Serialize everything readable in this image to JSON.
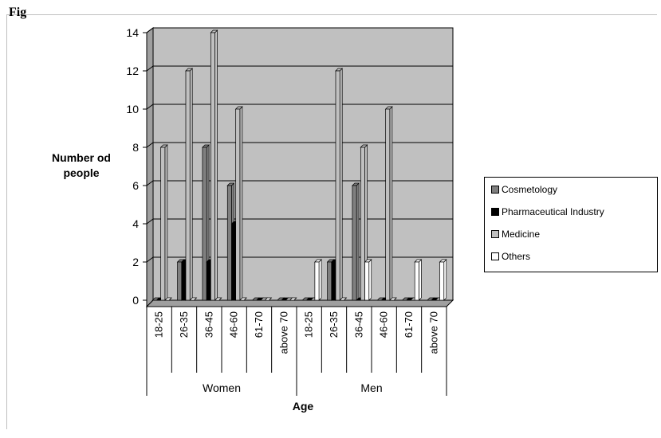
{
  "page": {
    "cut_off_title": "Fig"
  },
  "chart_data": {
    "type": "bar",
    "title": "",
    "xlabel": "Age",
    "ylabel": "Number od people",
    "ylim": [
      0,
      14
    ],
    "yticks": [
      0,
      2,
      4,
      6,
      8,
      10,
      12,
      14
    ],
    "grid": true,
    "groups": [
      {
        "name": "Women",
        "categories": [
          "18-25",
          "26-35",
          "36-45",
          "46-60",
          "61-70",
          "above 70"
        ]
      },
      {
        "name": "Men",
        "categories": [
          "18-25",
          "26-35",
          "36-45",
          "46-60",
          "61-70",
          "above 70"
        ]
      }
    ],
    "categories": [
      "18-25",
      "26-35",
      "36-45",
      "46-60",
      "61-70",
      "above 70",
      "18-25",
      "26-35",
      "36-45",
      "46-60",
      "61-70",
      "above 70"
    ],
    "series": [
      {
        "name": "Cosmetology",
        "color": "#7f7f7f",
        "values": [
          0,
          2,
          8,
          6,
          0,
          0,
          0,
          2,
          6,
          0,
          0,
          0
        ]
      },
      {
        "name": "Pharmaceutical Industry",
        "color": "#000000",
        "values": [
          0,
          2,
          2,
          4,
          0,
          0,
          0,
          2,
          0,
          0,
          0,
          0
        ]
      },
      {
        "name": "Medicine",
        "color": "#c0c0c0",
        "values": [
          8,
          12,
          14,
          10,
          0,
          0,
          0,
          12,
          8,
          10,
          0,
          0
        ]
      },
      {
        "name": "Others",
        "color": "#ffffff",
        "values": [
          0,
          0,
          0,
          0,
          0,
          0,
          2,
          0,
          2,
          0,
          2,
          2
        ]
      }
    ],
    "legend_position": "right",
    "plot_background": "#c0c0c0"
  }
}
